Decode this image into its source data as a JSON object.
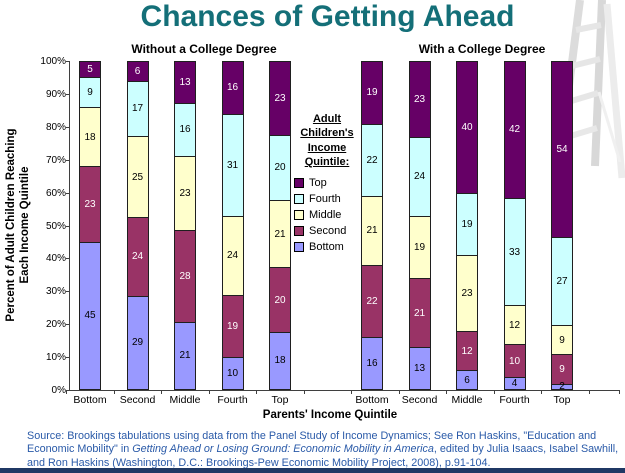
{
  "title": "Chances of Getting Ahead",
  "colors": {
    "title_teal": "#146F78",
    "source_blue": "#2A5AA8",
    "bottom_bar_navy": "#1F3864",
    "axis": "#3f3f3f"
  },
  "legend": {
    "title_lines": [
      "Adult",
      "Children's",
      "Income",
      "Quintile:"
    ],
    "items": [
      {
        "label": "Top",
        "color": "#660066"
      },
      {
        "label": "Fourth",
        "color": "#CCFFFF"
      },
      {
        "label": "Middle",
        "color": "#FFFFCC"
      },
      {
        "label": "Second",
        "color": "#993366"
      },
      {
        "label": "Bottom",
        "color": "#9999FF"
      }
    ]
  },
  "chart_data": {
    "type": "bar",
    "stacked": true,
    "percent": true,
    "xlabel": "Parents' Income Quintile",
    "ylabel": "Percent of Adult Children Reaching Each Income Quintile",
    "ylabel_lines": [
      "Percent of Adult Children Reaching",
      "Each Income Quintile"
    ],
    "yticks": [
      "0%",
      "10%",
      "20%",
      "30%",
      "40%",
      "50%",
      "60%",
      "70%",
      "80%",
      "90%",
      "100%"
    ],
    "ylim": [
      0,
      100
    ],
    "grid": false,
    "legend_position": "center-between-groups",
    "categories": [
      "Bottom",
      "Second",
      "Middle",
      "Fourth",
      "Top"
    ],
    "series_colors": {
      "Bottom": "#9999FF",
      "Second": "#993366",
      "Middle": "#FFFFCC",
      "Fourth": "#CCFFFF",
      "Top": "#660066"
    },
    "label_text_colors": {
      "Bottom": "#000000",
      "Second": "#FFFFFF",
      "Middle": "#000000",
      "Fourth": "#000000",
      "Top": "#FFFFFF"
    },
    "groups": [
      {
        "label": "Without a College Degree",
        "series": [
          {
            "name": "Bottom",
            "values": [
              45,
              29,
              21,
              10,
              18
            ]
          },
          {
            "name": "Second",
            "values": [
              23,
              24,
              28,
              19,
              20
            ]
          },
          {
            "name": "Middle",
            "values": [
              18,
              25,
              23,
              24,
              21
            ]
          },
          {
            "name": "Fourth",
            "values": [
              9,
              17,
              16,
              31,
              20
            ]
          },
          {
            "name": "Top",
            "values": [
              5,
              6,
              13,
              16,
              23
            ]
          }
        ]
      },
      {
        "label": "With a College Degree",
        "series": [
          {
            "name": "Bottom",
            "values": [
              16,
              13,
              6,
              4,
              2
            ]
          },
          {
            "name": "Second",
            "values": [
              22,
              21,
              12,
              10,
              9
            ]
          },
          {
            "name": "Middle",
            "values": [
              21,
              19,
              23,
              12,
              9
            ]
          },
          {
            "name": "Fourth",
            "values": [
              22,
              24,
              19,
              33,
              27
            ]
          },
          {
            "name": "Top",
            "values": [
              19,
              23,
              40,
              42,
              54
            ]
          }
        ]
      }
    ]
  },
  "source": {
    "prefix": "Source: Brookings tabulations using data from the Panel Study of Income Dynamics; See Ron Haskins, \"Education and Economic Mobility\" in ",
    "italic": "Getting Ahead or Losing Ground: Economic Mobility in America",
    "suffix": ", edited by Julia Isaacs, Isabel Sawhill, and Ron Haskins (Washington, D.C.: Brookings-Pew Economic Mobility Project, 2008), p.91-104."
  }
}
